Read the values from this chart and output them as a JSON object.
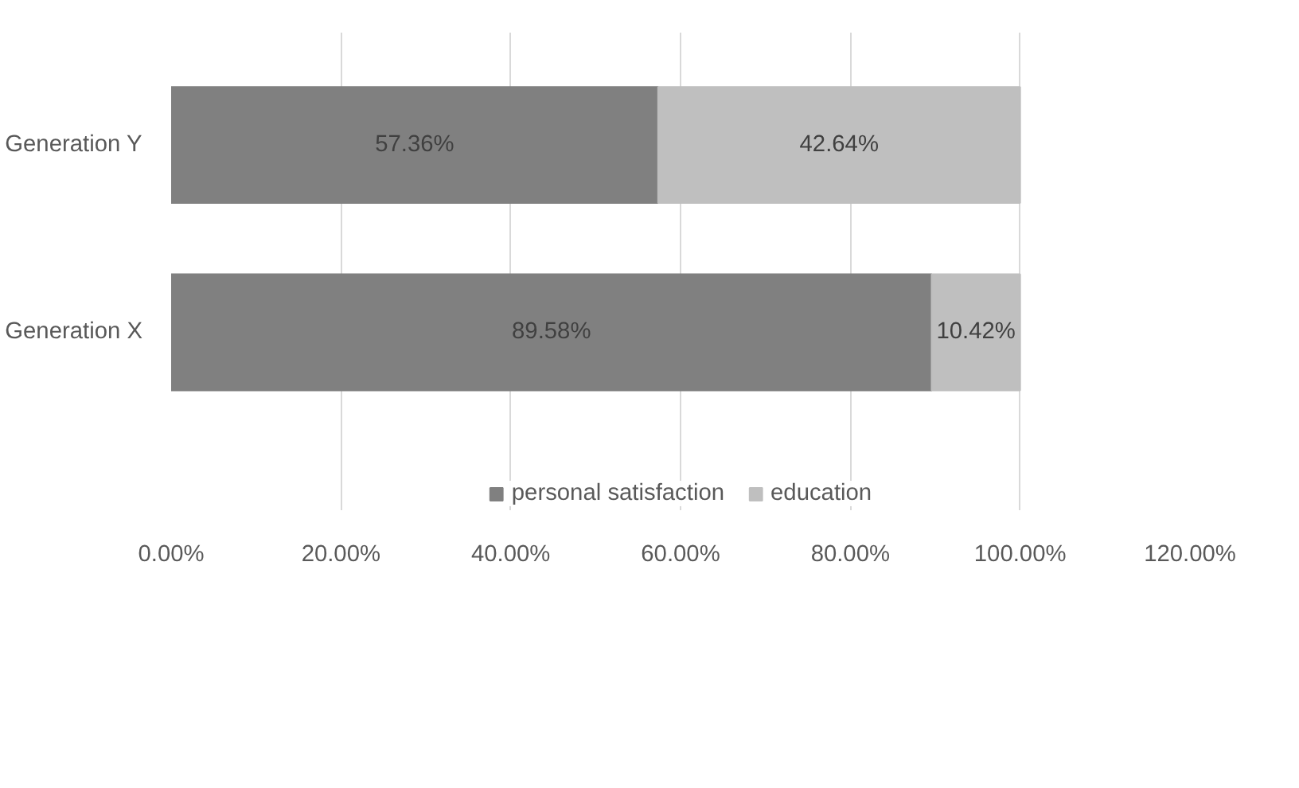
{
  "chart_data": {
    "type": "bar",
    "orientation": "horizontal",
    "stacked": true,
    "categories": [
      "Generation Y",
      "Generation X"
    ],
    "series": [
      {
        "name": "personal satisfaction",
        "color": "#808080",
        "values": [
          57.36,
          89.58
        ],
        "value_labels": [
          "57.36%",
          "89.58%"
        ]
      },
      {
        "name": "education",
        "color": "#bfbfbf",
        "values": [
          42.64,
          10.42
        ],
        "value_labels": [
          "42.64%",
          "10.42%"
        ]
      }
    ],
    "xlim": [
      0,
      120
    ],
    "xticks": [
      {
        "value": 0,
        "label": "0.00%"
      },
      {
        "value": 20,
        "label": "20.00%"
      },
      {
        "value": 40,
        "label": "40.00%"
      },
      {
        "value": 60,
        "label": "60.00%"
      },
      {
        "value": 80,
        "label": "80.00%"
      },
      {
        "value": 100,
        "label": "100.00%"
      },
      {
        "value": 120,
        "label": "120.00%"
      }
    ],
    "grid": "x",
    "legend": "bottom"
  }
}
